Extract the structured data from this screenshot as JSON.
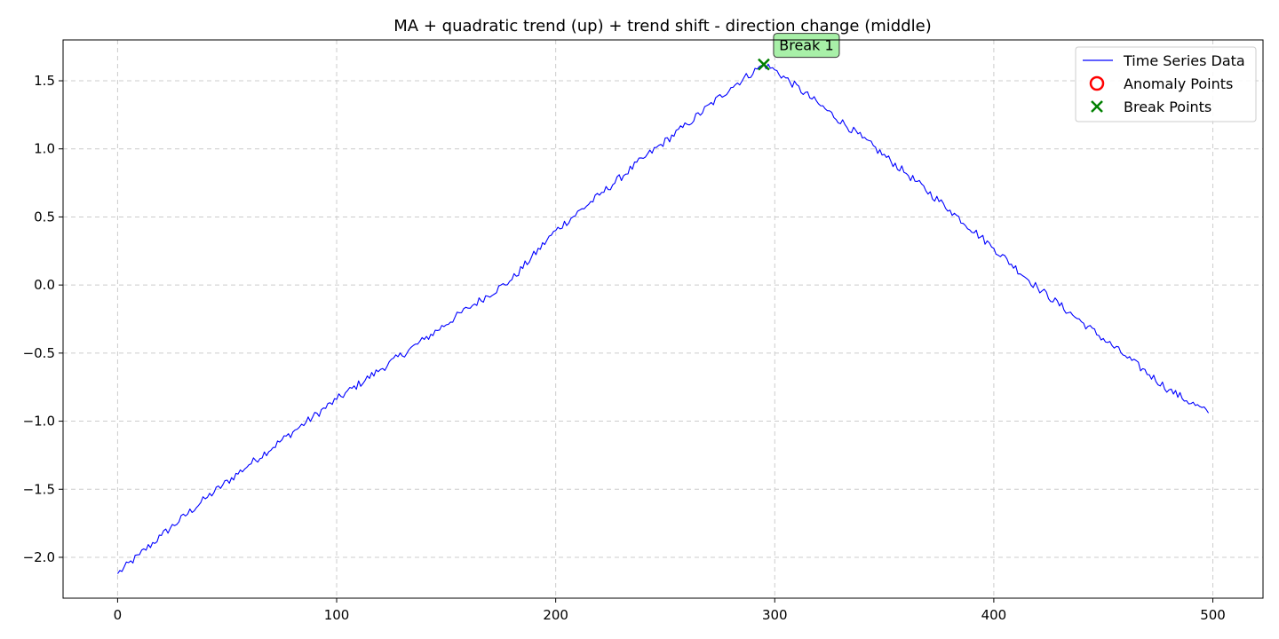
{
  "chart_data": {
    "type": "line",
    "title": "MA + quadratic trend (up) + trend shift - direction change (middle)",
    "xlabel": "",
    "ylabel": "",
    "xlim": [
      -24.9,
      522.9
    ],
    "ylim": [
      -2.3,
      1.8
    ],
    "x_ticks": [
      0,
      100,
      200,
      300,
      400,
      500
    ],
    "y_ticks": [
      -2.0,
      -1.5,
      -1.0,
      -0.5,
      0.0,
      0.5,
      1.0,
      1.5
    ],
    "grid": true,
    "legend_position": "upper right",
    "series": [
      {
        "name": "Time Series Data",
        "color": "#0000ff",
        "x_start": 0,
        "x_end": 498,
        "anchor_points": [
          [
            0,
            -2.12
          ],
          [
            10,
            -1.98
          ],
          [
            20,
            -1.84
          ],
          [
            40,
            -1.57
          ],
          [
            60,
            -1.32
          ],
          [
            80,
            -1.08
          ],
          [
            100,
            -0.84
          ],
          [
            120,
            -0.62
          ],
          [
            140,
            -0.4
          ],
          [
            160,
            -0.17
          ],
          [
            180,
            0.04
          ],
          [
            200,
            0.4
          ],
          [
            220,
            0.66
          ],
          [
            240,
            0.93
          ],
          [
            260,
            1.18
          ],
          [
            280,
            1.45
          ],
          [
            295,
            1.62
          ],
          [
            300,
            1.58
          ],
          [
            320,
            1.33
          ],
          [
            340,
            1.08
          ],
          [
            360,
            0.82
          ],
          [
            380,
            0.55
          ],
          [
            400,
            0.27
          ],
          [
            420,
            -0.02
          ],
          [
            440,
            -0.27
          ],
          [
            460,
            -0.52
          ],
          [
            480,
            -0.77
          ],
          [
            498,
            -0.94
          ]
        ],
        "noise_amplitude": 0.03
      }
    ],
    "anomaly_points": [],
    "break_points": [
      {
        "x": 295,
        "y": 1.62,
        "label": "Break 1"
      }
    ],
    "legend": [
      {
        "label": "Time Series Data",
        "marker": "line",
        "color": "#0000ff"
      },
      {
        "label": "Anomaly Points",
        "marker": "circle",
        "color": "#ff0000"
      },
      {
        "label": "Break Points",
        "marker": "x",
        "color": "#008000"
      }
    ],
    "annotation_box_color": "#a8f0a8"
  }
}
